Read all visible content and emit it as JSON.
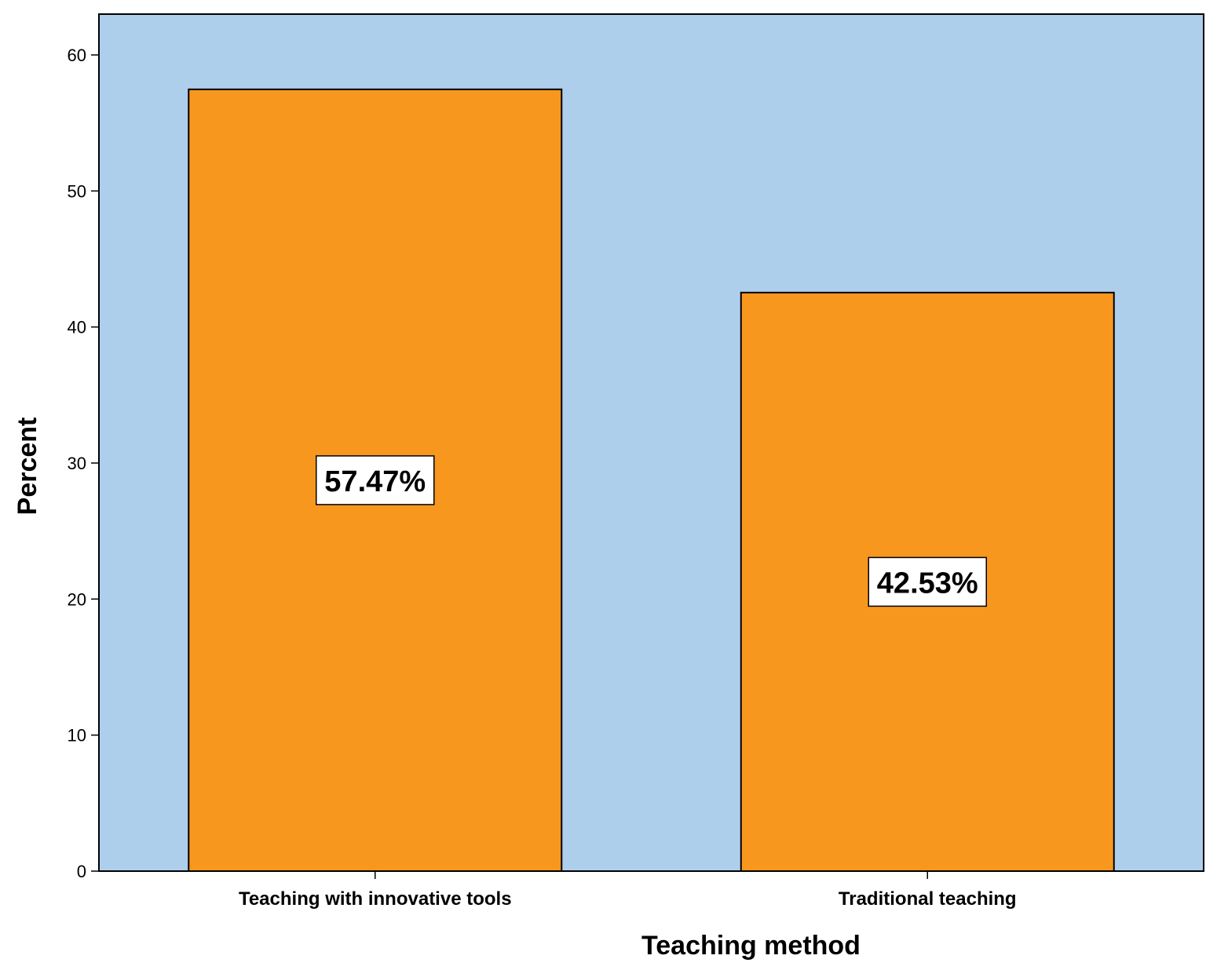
{
  "chart_data": {
    "type": "bar",
    "title": "",
    "xlabel": "Teaching method",
    "ylabel": "Percent",
    "categories": [
      "Teaching with innovative tools",
      "Traditional teaching"
    ],
    "values": [
      57.47,
      42.53
    ],
    "data_labels": [
      "57.47%",
      "42.53%"
    ],
    "ylim": [
      0,
      63
    ],
    "yticks": [
      0,
      10,
      20,
      30,
      40,
      50,
      60
    ],
    "grid": false,
    "legend": "none",
    "colors": {
      "plot_background": "#aecfec",
      "bar_fill": "#f7971e",
      "bar_stroke": "#000000",
      "label_box": "#ffffff"
    }
  }
}
